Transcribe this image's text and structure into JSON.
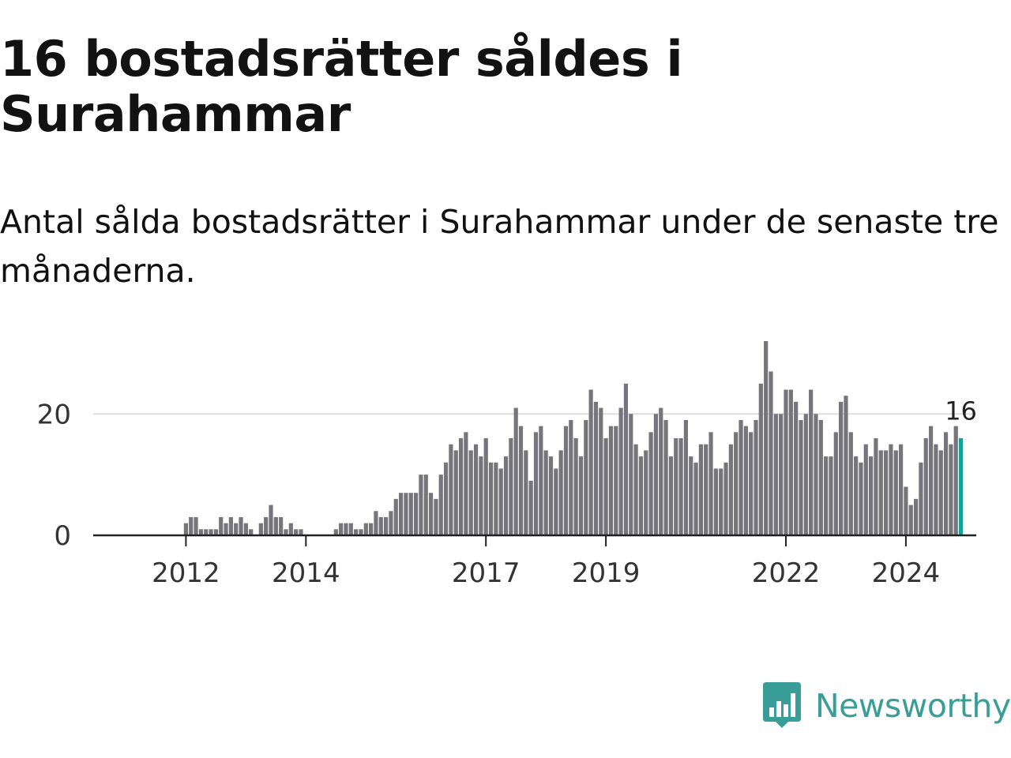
{
  "title": "16 bostadsrätter såldes i Surahammar",
  "subtitle": "Antal sålda bostadsrätter i Surahammar under de senaste tre månaderna.",
  "brand": {
    "name": "Newsworthy",
    "icon": "newsworthy-logo-icon"
  },
  "colors": {
    "bar": "#76757b",
    "highlight": "#13a39a",
    "grid": "#dddddd",
    "axis": "#222222",
    "brand": "#3a9e98"
  },
  "chart_data": {
    "type": "bar",
    "xlabel": "",
    "ylabel": "",
    "ylim": [
      0,
      32
    ],
    "y_ticks": [
      0,
      20
    ],
    "x_ticks": [
      "2012",
      "2014",
      "2017",
      "2019",
      "2022",
      "2024"
    ],
    "grid": true,
    "start": "2011-03",
    "annotation": {
      "label": "16",
      "value": 16
    },
    "values": [
      0,
      0,
      0,
      0,
      0,
      0,
      0,
      0,
      0,
      0,
      2,
      3,
      3,
      1,
      1,
      1,
      1,
      3,
      2,
      3,
      2,
      3,
      2,
      1,
      0,
      2,
      3,
      5,
      3,
      3,
      1,
      2,
      1,
      1,
      0,
      0,
      0,
      0,
      0,
      0,
      1,
      2,
      2,
      2,
      1,
      1,
      2,
      2,
      4,
      3,
      3,
      4,
      6,
      7,
      7,
      7,
      7,
      10,
      10,
      7,
      6,
      10,
      12,
      15,
      14,
      16,
      17,
      14,
      15,
      13,
      16,
      12,
      12,
      11,
      13,
      16,
      21,
      18,
      14,
      9,
      17,
      18,
      14,
      13,
      11,
      14,
      18,
      19,
      16,
      13,
      19,
      24,
      22,
      21,
      16,
      18,
      18,
      21,
      25,
      20,
      15,
      13,
      14,
      17,
      20,
      21,
      19,
      13,
      16,
      16,
      19,
      13,
      12,
      15,
      15,
      17,
      11,
      11,
      12,
      15,
      17,
      19,
      18,
      17,
      19,
      25,
      32,
      27,
      20,
      20,
      24,
      24,
      22,
      19,
      20,
      24,
      20,
      19,
      13,
      13,
      17,
      22,
      23,
      17,
      13,
      12,
      15,
      13,
      16,
      14,
      14,
      15,
      14,
      15,
      8,
      5,
      6,
      12,
      16,
      18,
      15,
      14,
      17,
      15,
      18,
      16
    ]
  }
}
